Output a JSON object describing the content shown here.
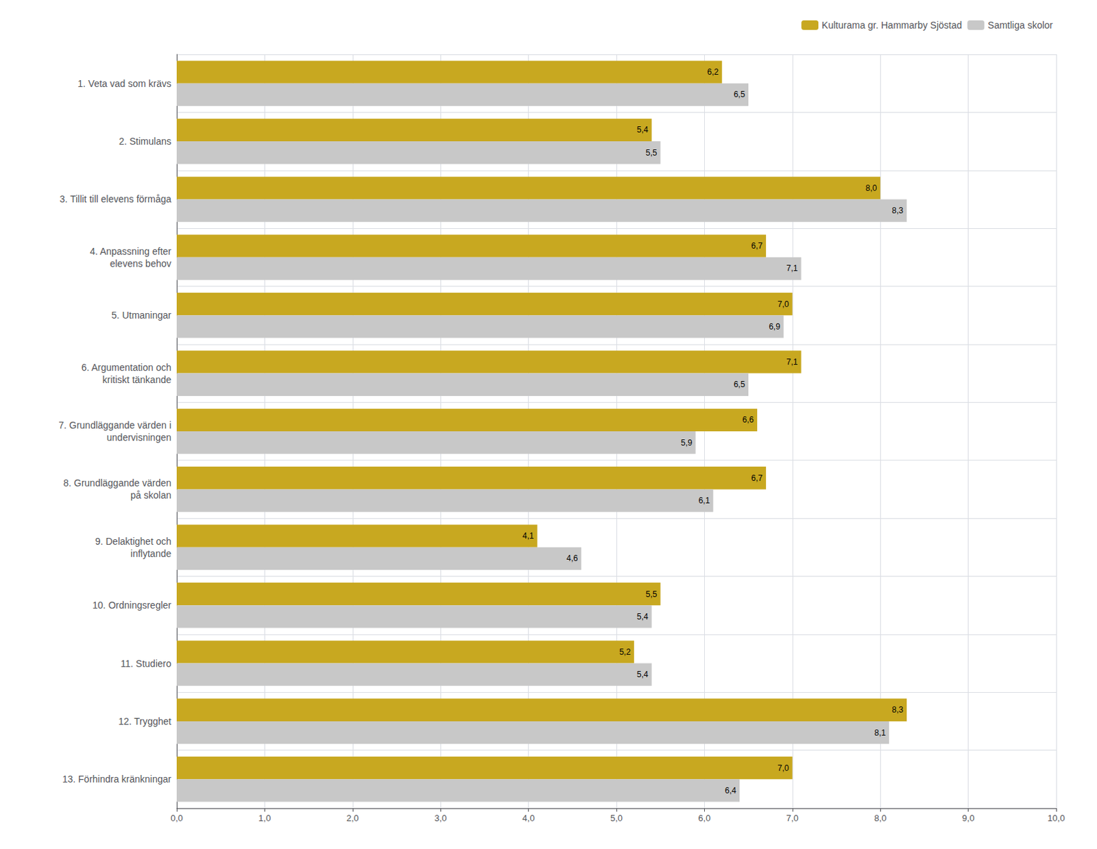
{
  "chart_data": {
    "type": "bar",
    "orientation": "horizontal",
    "categories": [
      "1. Veta vad som krävs",
      "2. Stimulans",
      "3. Tillit till elevens förmåga",
      "4. Anpassning efter\nelevens behov",
      "5. Utmaningar",
      "6. Argumentation och\nkritiskt tänkande",
      "7. Grundläggande värden i\nundervisningen",
      "8. Grundläggande värden\npå skolan",
      "9. Delaktighet och\ninflytande",
      "10. Ordningsregler",
      "11. Studiero",
      "12. Trygghet",
      "13. Förhindra kränkningar"
    ],
    "series": [
      {
        "name": "Kulturama gr. Hammarby Sjöstad",
        "color": "#C8A820",
        "values": [
          6.2,
          5.4,
          8.0,
          6.7,
          7.0,
          7.1,
          6.6,
          6.7,
          4.1,
          5.5,
          5.2,
          8.3,
          7.0
        ],
        "value_labels": [
          "6,2",
          "5,4",
          "8,0",
          "6,7",
          "7,0",
          "7,1",
          "6,6",
          "6,7",
          "4,1",
          "5,5",
          "5,2",
          "8,3",
          "7,0"
        ]
      },
      {
        "name": "Samtliga skolor",
        "color": "#C8C8C8",
        "values": [
          6.5,
          5.5,
          8.3,
          7.1,
          6.9,
          6.5,
          5.9,
          6.1,
          4.6,
          5.4,
          5.4,
          8.1,
          6.4
        ],
        "value_labels": [
          "6,5",
          "5,5",
          "8,3",
          "7,1",
          "6,9",
          "6,5",
          "5,9",
          "6,1",
          "4,6",
          "5,4",
          "5,4",
          "8,1",
          "6,4"
        ]
      }
    ],
    "xlim": [
      0,
      10
    ],
    "xticks": [
      {
        "value": 0,
        "label": "0,0"
      },
      {
        "value": 1,
        "label": "1,0"
      },
      {
        "value": 2,
        "label": "2,0"
      },
      {
        "value": 3,
        "label": "3,0"
      },
      {
        "value": 4,
        "label": "4,0"
      },
      {
        "value": 5,
        "label": "5,0"
      },
      {
        "value": 6,
        "label": "6,0"
      },
      {
        "value": 7,
        "label": "7,0"
      },
      {
        "value": 8,
        "label": "8,0"
      },
      {
        "value": 9,
        "label": "9,0"
      },
      {
        "value": 10,
        "label": "10,0"
      }
    ],
    "grid": true,
    "legend": "top",
    "data_labels": true
  }
}
